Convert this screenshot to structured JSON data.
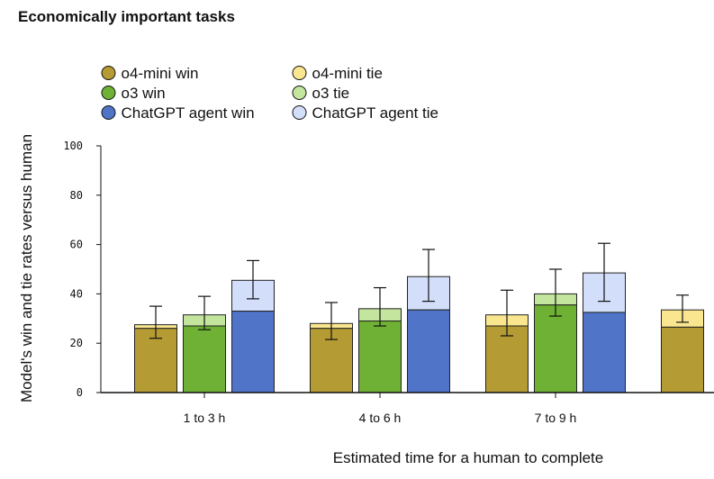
{
  "page": {
    "title": "Economically important tasks"
  },
  "chart_data": {
    "type": "bar",
    "title": "Economically important tasks",
    "xlabel": "Estimated time for a human to complete",
    "ylabel": "Model's win and tie rates versus human",
    "ylim": [
      0,
      100
    ],
    "yticks": [
      0,
      20,
      40,
      60,
      80,
      100
    ],
    "grid": false,
    "legend_position": "top-left",
    "categories": [
      "1 to 3 h",
      "4 to 6 h",
      "7 to 9 h",
      ""
    ],
    "legend": [
      {
        "label": "o4-mini win",
        "color": "#b59b33"
      },
      {
        "label": "o4-mini tie",
        "color": "#fbe690"
      },
      {
        "label": "o3 win",
        "color": "#6fb134"
      },
      {
        "label": "o3 tie",
        "color": "#c3e59d"
      },
      {
        "label": "ChatGPT agent win",
        "color": "#4f74c8"
      },
      {
        "label": "ChatGPT agent tie",
        "color": "#d3dffa"
      }
    ],
    "series": [
      {
        "name": "o4-mini",
        "win_color": "#b59b33",
        "tie_color": "#fbe690",
        "win": [
          26,
          26,
          27,
          26.5
        ],
        "tie": [
          1.5,
          2,
          4.5,
          7
        ],
        "error_high": [
          35,
          36.5,
          41.5,
          39.5
        ],
        "error_low": [
          22,
          21.5,
          23,
          28.5
        ]
      },
      {
        "name": "o3",
        "win_color": "#6fb134",
        "tie_color": "#c3e59d",
        "win": [
          27,
          29,
          35.5,
          null
        ],
        "tie": [
          4.5,
          5,
          4.5,
          null
        ],
        "error_high": [
          39,
          42.5,
          50,
          null
        ],
        "error_low": [
          25.5,
          27,
          31,
          null
        ]
      },
      {
        "name": "ChatGPT agent",
        "win_color": "#4f74c8",
        "tie_color": "#d3dffa",
        "win": [
          33,
          33.5,
          32.5,
          null
        ],
        "tie": [
          12.5,
          13.5,
          16,
          null
        ],
        "error_high": [
          53.5,
          58,
          60.5,
          null
        ],
        "error_low": [
          38,
          37,
          37,
          null
        ]
      }
    ]
  }
}
